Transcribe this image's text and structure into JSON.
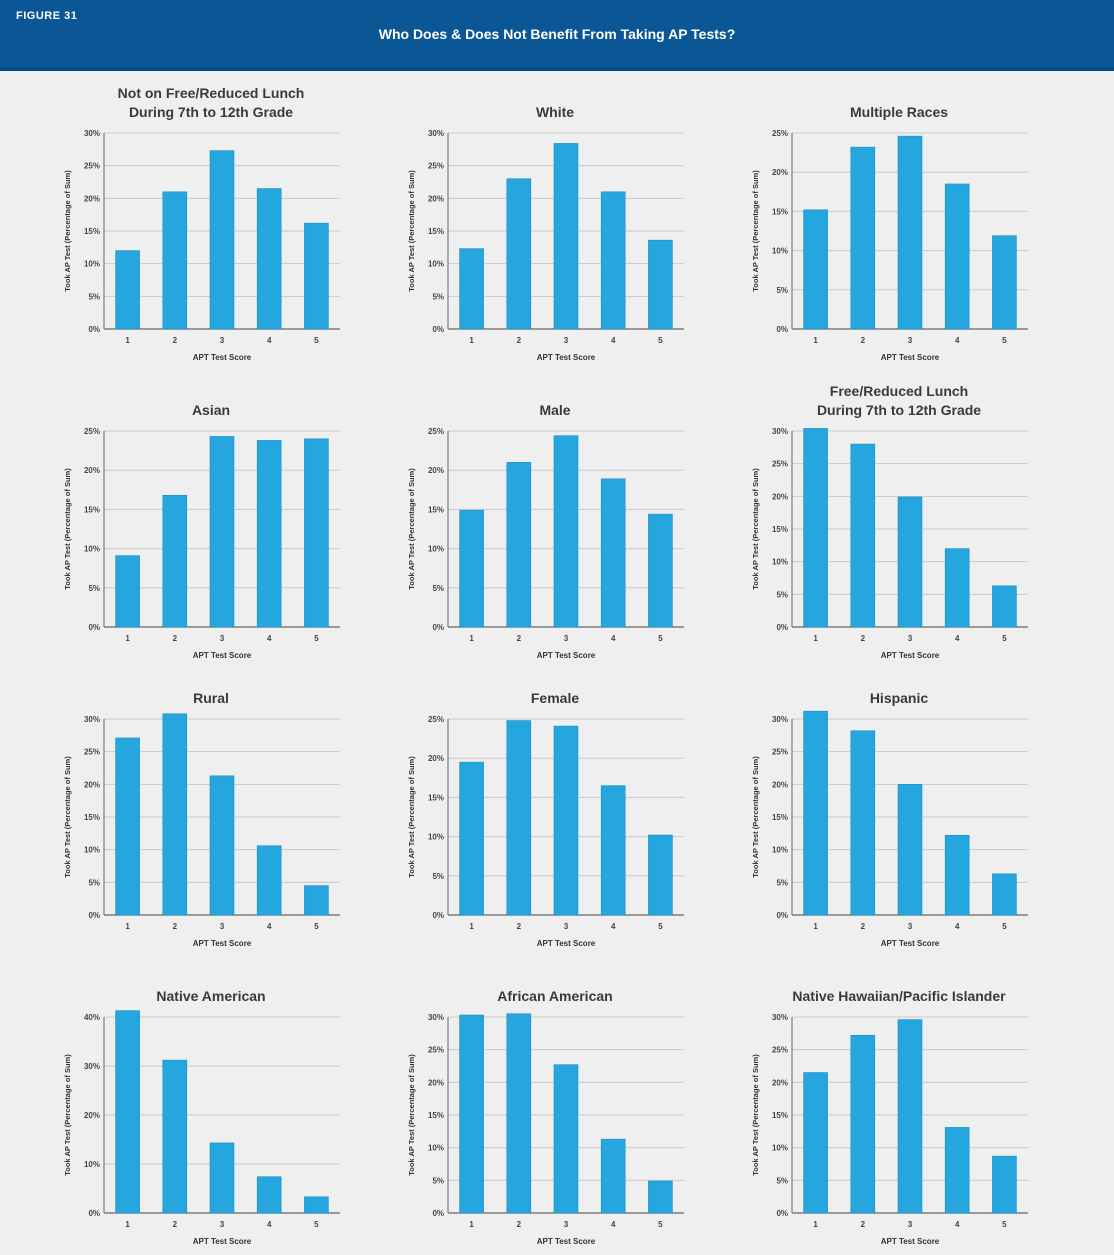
{
  "figure": {
    "label": "FIGURE 31",
    "title": "Who Does & Does Not Benefit From Taking AP Tests?"
  },
  "colors": {
    "bar": "#26a6df",
    "header": "#0b5694",
    "grid": "#c8c8c8",
    "axis": "#666666"
  },
  "chart_data": [
    {
      "type": "bar",
      "title": [
        "Not on Free/Reduced Lunch",
        "During 7th to 12th Grade"
      ],
      "categories": [
        "1",
        "2",
        "3",
        "4",
        "5"
      ],
      "values": [
        12,
        21,
        27.3,
        21.5,
        16.2
      ],
      "ylim": [
        0,
        30
      ],
      "yticks": [
        0,
        5,
        10,
        15,
        20,
        25,
        30
      ],
      "ytick_labels": [
        "0%",
        "5%",
        "10%",
        "15%",
        "20%",
        "25%",
        "30%"
      ],
      "xlabel": "APT Test Score",
      "ylabel": "Took AP Test (Percentage of Sum)",
      "grid": true
    },
    {
      "type": "bar",
      "title": [
        "White"
      ],
      "categories": [
        "1",
        "2",
        "3",
        "4",
        "5"
      ],
      "values": [
        12.3,
        23,
        28.4,
        21,
        13.6
      ],
      "ylim": [
        0,
        30
      ],
      "yticks": [
        0,
        5,
        10,
        15,
        20,
        25,
        30
      ],
      "ytick_labels": [
        "0%",
        "5%",
        "10%",
        "15%",
        "20%",
        "25%",
        "30%"
      ],
      "xlabel": "APT Test Score",
      "ylabel": "Took AP Test (Percentage of Sum)",
      "grid": true
    },
    {
      "type": "bar",
      "title": [
        "Multiple Races"
      ],
      "categories": [
        "1",
        "2",
        "3",
        "4",
        "5"
      ],
      "values": [
        15.2,
        23.2,
        24.6,
        18.5,
        11.9
      ],
      "ylim": [
        0,
        25
      ],
      "yticks": [
        0,
        5,
        10,
        15,
        20,
        25
      ],
      "ytick_labels": [
        "0%",
        "5%",
        "10%",
        "15%",
        "20%",
        "25%"
      ],
      "xlabel": "APT Test Score",
      "ylabel": "Took AP Test (Percentage of Sum)",
      "grid": true
    },
    {
      "type": "bar",
      "title": [
        "Asian"
      ],
      "categories": [
        "1",
        "2",
        "3",
        "4",
        "5"
      ],
      "values": [
        9.1,
        16.8,
        24.3,
        23.8,
        24
      ],
      "ylim": [
        0,
        25
      ],
      "yticks": [
        0,
        5,
        10,
        15,
        20,
        25
      ],
      "ytick_labels": [
        "0%",
        "5%",
        "10%",
        "15%",
        "20%",
        "25%"
      ],
      "xlabel": "APT Test Score",
      "ylabel": "Took AP Test (Percentage of Sum)",
      "grid": true
    },
    {
      "type": "bar",
      "title": [
        "Male"
      ],
      "categories": [
        "1",
        "2",
        "3",
        "4",
        "5"
      ],
      "values": [
        14.9,
        21,
        24.4,
        18.9,
        14.4
      ],
      "ylim": [
        0,
        25
      ],
      "yticks": [
        0,
        5,
        10,
        15,
        20,
        25
      ],
      "ytick_labels": [
        "0%",
        "5%",
        "10%",
        "15%",
        "20%",
        "25%"
      ],
      "xlabel": "APT Test Score",
      "ylabel": "Took AP Test (Percentage of Sum)",
      "grid": true
    },
    {
      "type": "bar",
      "title": [
        "Free/Reduced Lunch",
        "During 7th to 12th Grade"
      ],
      "categories": [
        "1",
        "2",
        "3",
        "4",
        "5"
      ],
      "values": [
        30.4,
        28,
        19.9,
        12,
        6.3
      ],
      "ylim": [
        0,
        30
      ],
      "yticks": [
        0,
        5,
        10,
        15,
        20,
        25,
        30
      ],
      "ytick_labels": [
        "0%",
        "5%",
        "10%",
        "15%",
        "20%",
        "25%",
        "30%"
      ],
      "xlabel": "APT Test Score",
      "ylabel": "Took AP Test (Percentage of Sum)",
      "grid": true
    },
    {
      "type": "bar",
      "title": [
        "Rural"
      ],
      "categories": [
        "1",
        "2",
        "3",
        "4",
        "5"
      ],
      "values": [
        27.1,
        30.8,
        21.3,
        10.6,
        4.5
      ],
      "ylim": [
        0,
        30
      ],
      "yticks": [
        0,
        5,
        10,
        15,
        20,
        25,
        30
      ],
      "ytick_labels": [
        "0%",
        "5%",
        "10%",
        "15%",
        "20%",
        "25%",
        "30%"
      ],
      "xlabel": "APT Test Score",
      "ylabel": "Took AP Test (Percentage of Sum)",
      "grid": true
    },
    {
      "type": "bar",
      "title": [
        "Female"
      ],
      "categories": [
        "1",
        "2",
        "3",
        "4",
        "5"
      ],
      "values": [
        19.5,
        24.8,
        24.1,
        16.5,
        10.2
      ],
      "ylim": [
        0,
        25
      ],
      "yticks": [
        0,
        5,
        10,
        15,
        20,
        25
      ],
      "ytick_labels": [
        "0%",
        "5%",
        "10%",
        "15%",
        "20%",
        "25%"
      ],
      "xlabel": "APT Test Score",
      "ylabel": "Took AP Test (Percentage of Sum)",
      "grid": true
    },
    {
      "type": "bar",
      "title": [
        "Hispanic"
      ],
      "categories": [
        "1",
        "2",
        "3",
        "4",
        "5"
      ],
      "values": [
        31.2,
        28.2,
        20,
        12.2,
        6.3
      ],
      "ylim": [
        0,
        30
      ],
      "yticks": [
        0,
        5,
        10,
        15,
        20,
        25,
        30
      ],
      "ytick_labels": [
        "0%",
        "5%",
        "10%",
        "15%",
        "20%",
        "25%",
        "30%"
      ],
      "xlabel": "APT Test Score",
      "ylabel": "Took AP Test (Percentage of Sum)",
      "grid": true
    },
    {
      "type": "bar",
      "title": [
        "Native American"
      ],
      "categories": [
        "1",
        "2",
        "3",
        "4",
        "5"
      ],
      "values": [
        41.3,
        31.2,
        14.3,
        7.4,
        3.3
      ],
      "ylim": [
        0,
        40
      ],
      "yticks": [
        0,
        10,
        20,
        30,
        40
      ],
      "ytick_labels": [
        "0%",
        "10%",
        "20%",
        "30%",
        "40%"
      ],
      "xlabel": "APT Test Score",
      "ylabel": "Took AP Test (Percentage of Sum)",
      "grid": true
    },
    {
      "type": "bar",
      "title": [
        "African American"
      ],
      "categories": [
        "1",
        "2",
        "3",
        "4",
        "5"
      ],
      "values": [
        30.3,
        30.5,
        22.7,
        11.3,
        4.9
      ],
      "ylim": [
        0,
        30
      ],
      "yticks": [
        0,
        5,
        10,
        15,
        20,
        25,
        30
      ],
      "ytick_labels": [
        "0%",
        "5%",
        "10%",
        "15%",
        "20%",
        "25%",
        "30%"
      ],
      "xlabel": "APT Test Score",
      "ylabel": "Took AP Test (Percentage of Sum)",
      "grid": true
    },
    {
      "type": "bar",
      "title": [
        "Native Hawaiian/Pacific Islander"
      ],
      "categories": [
        "1",
        "2",
        "3",
        "4",
        "5"
      ],
      "values": [
        21.5,
        27.2,
        29.6,
        13.1,
        8.7
      ],
      "ylim": [
        0,
        30
      ],
      "yticks": [
        0,
        5,
        10,
        15,
        20,
        25,
        30
      ],
      "ytick_labels": [
        "0%",
        "5%",
        "10%",
        "15%",
        "20%",
        "25%",
        "30%"
      ],
      "xlabel": "APT Test Score",
      "ylabel": "Took AP Test (Percentage of Sum)",
      "grid": true
    }
  ]
}
